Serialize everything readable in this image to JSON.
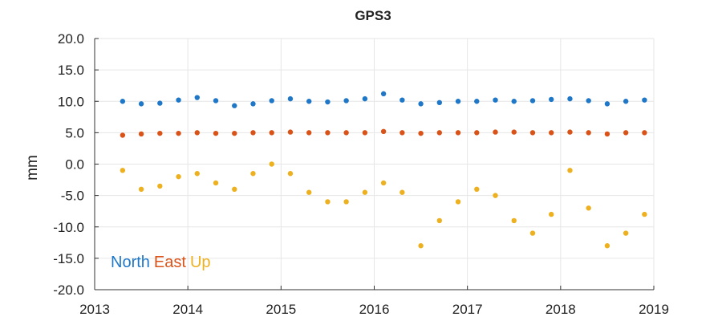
{
  "chart_data": {
    "type": "scatter",
    "title": "GPS3",
    "xlabel": "",
    "ylabel": "mm",
    "xlim": [
      2013,
      2019
    ],
    "ylim": [
      -20,
      20
    ],
    "x_ticks": [
      "2013",
      "2014",
      "2015",
      "2016",
      "2017",
      "2018",
      "2019"
    ],
    "y_ticks": [
      "20.0",
      "15.0",
      "10.0",
      "5.0",
      "0.0",
      "-5.0",
      "-10.0",
      "-15.0",
      "-20.0"
    ],
    "grid": true,
    "legend_position": "bottom-left",
    "series": [
      {
        "name": "North",
        "color": "#1f77c8",
        "x": [
          2013.3,
          2013.5,
          2013.7,
          2013.9,
          2014.1,
          2014.3,
          2014.5,
          2014.7,
          2014.9,
          2015.1,
          2015.3,
          2015.5,
          2015.7,
          2015.9,
          2016.1,
          2016.3,
          2016.5,
          2016.7,
          2016.9,
          2017.1,
          2017.3,
          2017.5,
          2017.7,
          2017.9,
          2018.1,
          2018.3,
          2018.5,
          2018.7,
          2018.9
        ],
        "y": [
          10.0,
          9.6,
          9.7,
          10.2,
          10.6,
          10.1,
          9.3,
          9.6,
          10.1,
          10.4,
          10.0,
          9.9,
          10.1,
          10.4,
          11.2,
          10.2,
          9.6,
          9.8,
          10.0,
          10.0,
          10.2,
          10.0,
          10.1,
          10.3,
          10.4,
          10.1,
          9.6,
          10.0,
          10.2
        ]
      },
      {
        "name": "East",
        "color": "#d95319",
        "x": [
          2013.3,
          2013.5,
          2013.7,
          2013.9,
          2014.1,
          2014.3,
          2014.5,
          2014.7,
          2014.9,
          2015.1,
          2015.3,
          2015.5,
          2015.7,
          2015.9,
          2016.1,
          2016.3,
          2016.5,
          2016.7,
          2016.9,
          2017.1,
          2017.3,
          2017.5,
          2017.7,
          2017.9,
          2018.1,
          2018.3,
          2018.5,
          2018.7,
          2018.9
        ],
        "y": [
          4.6,
          4.8,
          4.9,
          4.9,
          5.0,
          4.9,
          4.9,
          5.0,
          5.0,
          5.1,
          5.0,
          5.0,
          5.0,
          5.0,
          5.2,
          5.0,
          4.9,
          5.0,
          5.0,
          5.0,
          5.1,
          5.1,
          5.0,
          5.0,
          5.1,
          5.0,
          4.8,
          5.0,
          5.0
        ]
      },
      {
        "name": "Up",
        "color": "#edb120",
        "x": [
          2013.3,
          2013.5,
          2013.7,
          2013.9,
          2014.1,
          2014.3,
          2014.5,
          2014.7,
          2014.9,
          2015.1,
          2015.3,
          2015.5,
          2015.7,
          2015.9,
          2016.1,
          2016.3,
          2016.5,
          2016.7,
          2016.9,
          2017.1,
          2017.3,
          2017.5,
          2017.7,
          2017.9,
          2018.1,
          2018.3,
          2018.5,
          2018.7,
          2018.9
        ],
        "y": [
          -1.0,
          -4.0,
          -3.5,
          -2.0,
          -1.5,
          -3.0,
          -4.0,
          -1.5,
          0.0,
          -1.5,
          -4.5,
          -6.0,
          -6.0,
          -4.5,
          -3.0,
          -4.5,
          -13.0,
          -9.0,
          -6.0,
          -4.0,
          -5.0,
          -9.0,
          -11.0,
          -8.0,
          -1.0,
          -7.0,
          -13.0,
          -11.0,
          -8.0
        ]
      }
    ],
    "legend": [
      {
        "label": "North",
        "color": "#1f77c8"
      },
      {
        "label": "East",
        "color": "#d95319"
      },
      {
        "label": "Up",
        "color": "#edb120"
      }
    ]
  }
}
